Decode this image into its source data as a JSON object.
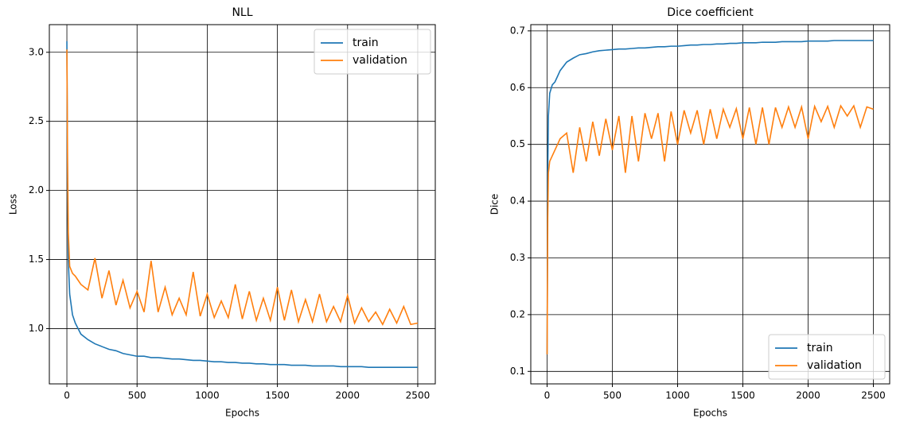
{
  "chart_data": [
    {
      "type": "line",
      "title": "NLL",
      "xlabel": "Epochs",
      "ylabel": "Loss",
      "x": [
        0,
        5,
        10,
        20,
        40,
        60,
        80,
        100,
        150,
        200,
        250,
        300,
        350,
        400,
        450,
        500,
        550,
        600,
        650,
        700,
        750,
        800,
        850,
        900,
        950,
        1000,
        1050,
        1100,
        1150,
        1200,
        1250,
        1300,
        1350,
        1400,
        1450,
        1500,
        1550,
        1600,
        1650,
        1700,
        1750,
        1800,
        1850,
        1900,
        1950,
        2000,
        2050,
        2100,
        2150,
        2200,
        2250,
        2300,
        2350,
        2400,
        2450,
        2500
      ],
      "series": [
        {
          "name": "train",
          "color": "#1f77b4",
          "values": [
            3.08,
            2.0,
            1.5,
            1.25,
            1.1,
            1.04,
            1.0,
            0.96,
            0.92,
            0.89,
            0.87,
            0.85,
            0.84,
            0.82,
            0.81,
            0.8,
            0.8,
            0.79,
            0.79,
            0.785,
            0.78,
            0.78,
            0.775,
            0.77,
            0.77,
            0.765,
            0.76,
            0.76,
            0.755,
            0.755,
            0.75,
            0.75,
            0.745,
            0.745,
            0.74,
            0.74,
            0.74,
            0.735,
            0.735,
            0.735,
            0.73,
            0.73,
            0.73,
            0.73,
            0.725,
            0.725,
            0.725,
            0.725,
            0.72,
            0.72,
            0.72,
            0.72,
            0.72,
            0.72,
            0.72,
            0.72
          ]
        },
        {
          "name": "validation",
          "color": "#ff7f0e",
          "values": [
            3.02,
            2.2,
            1.7,
            1.45,
            1.4,
            1.38,
            1.35,
            1.32,
            1.28,
            1.51,
            1.22,
            1.42,
            1.17,
            1.35,
            1.15,
            1.27,
            1.12,
            1.49,
            1.12,
            1.3,
            1.1,
            1.22,
            1.1,
            1.41,
            1.09,
            1.25,
            1.08,
            1.2,
            1.08,
            1.32,
            1.07,
            1.27,
            1.06,
            1.22,
            1.06,
            1.3,
            1.06,
            1.28,
            1.05,
            1.21,
            1.05,
            1.25,
            1.05,
            1.16,
            1.05,
            1.24,
            1.04,
            1.15,
            1.05,
            1.12,
            1.03,
            1.14,
            1.04,
            1.16,
            1.03,
            1.04
          ]
        }
      ],
      "xlim": [
        -125,
        2625
      ],
      "xticks": [
        0,
        500,
        1000,
        1500,
        2000,
        2500
      ],
      "ylim": [
        0.6,
        3.2
      ],
      "yticks": [
        {
          "value": 1,
          "label": "1.0"
        },
        {
          "value": 1.5,
          "label": "1.5"
        },
        {
          "value": 2,
          "label": "2.0"
        },
        {
          "value": 2.5,
          "label": "2.5"
        },
        {
          "value": 3,
          "label": "3.0"
        }
      ],
      "grid": true,
      "legend": "upper right"
    },
    {
      "type": "line",
      "title": "Dice coefficient",
      "xlabel": "Epochs",
      "ylabel": "Dice",
      "x": [
        0,
        5,
        10,
        20,
        40,
        60,
        80,
        100,
        150,
        200,
        250,
        300,
        350,
        400,
        450,
        500,
        550,
        600,
        650,
        700,
        750,
        800,
        850,
        900,
        950,
        1000,
        1050,
        1100,
        1150,
        1200,
        1250,
        1300,
        1350,
        1400,
        1450,
        1500,
        1550,
        1600,
        1650,
        1700,
        1750,
        1800,
        1850,
        1900,
        1950,
        2000,
        2050,
        2100,
        2150,
        2200,
        2250,
        2300,
        2350,
        2400,
        2450,
        2500
      ],
      "series": [
        {
          "name": "train",
          "color": "#1f77b4",
          "values": [
            0.13,
            0.45,
            0.55,
            0.59,
            0.605,
            0.61,
            0.62,
            0.63,
            0.645,
            0.652,
            0.658,
            0.66,
            0.663,
            0.665,
            0.666,
            0.667,
            0.668,
            0.668,
            0.669,
            0.67,
            0.67,
            0.671,
            0.672,
            0.672,
            0.673,
            0.673,
            0.674,
            0.675,
            0.675,
            0.676,
            0.676,
            0.677,
            0.677,
            0.678,
            0.678,
            0.679,
            0.679,
            0.679,
            0.68,
            0.68,
            0.68,
            0.681,
            0.681,
            0.681,
            0.681,
            0.682,
            0.682,
            0.682,
            0.682,
            0.683,
            0.683,
            0.683,
            0.683,
            0.683,
            0.683,
            0.683
          ]
        },
        {
          "name": "validation",
          "color": "#ff7f0e",
          "values": [
            0.13,
            0.37,
            0.45,
            0.47,
            0.48,
            0.49,
            0.5,
            0.51,
            0.52,
            0.45,
            0.53,
            0.47,
            0.54,
            0.48,
            0.545,
            0.49,
            0.55,
            0.45,
            0.55,
            0.47,
            0.555,
            0.51,
            0.555,
            0.47,
            0.558,
            0.5,
            0.56,
            0.52,
            0.56,
            0.5,
            0.562,
            0.51,
            0.562,
            0.53,
            0.563,
            0.51,
            0.565,
            0.5,
            0.565,
            0.5,
            0.565,
            0.53,
            0.566,
            0.53,
            0.566,
            0.51,
            0.567,
            0.54,
            0.567,
            0.53,
            0.568,
            0.55,
            0.568,
            0.53,
            0.566,
            0.562
          ]
        }
      ],
      "xlim": [
        -125,
        2625
      ],
      "xticks": [
        0,
        500,
        1000,
        1500,
        2000,
        2500
      ],
      "ylim": [
        0.078,
        0.711
      ],
      "yticks": [
        0.1,
        0.2,
        0.3,
        0.4,
        0.5,
        0.6,
        0.7
      ],
      "grid": true,
      "legend": "lower right"
    }
  ]
}
